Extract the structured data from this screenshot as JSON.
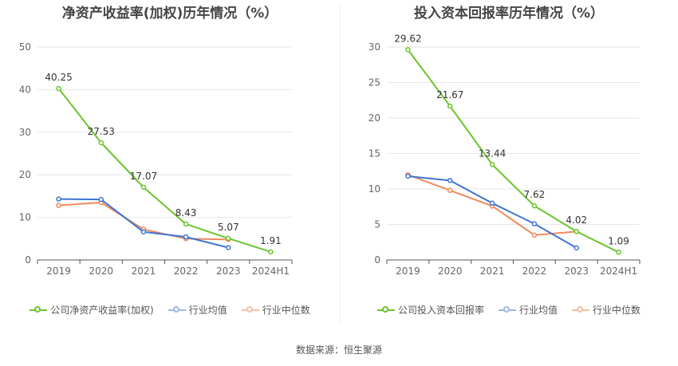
{
  "source_text": "数据来源：恒生聚源",
  "chart_data": [
    {
      "type": "line",
      "title": "净资产收益率(加权)历年情况（%）",
      "categories": [
        "2019",
        "2020",
        "2021",
        "2022",
        "2023",
        "2024H1"
      ],
      "ylim": [
        0,
        50
      ],
      "yticks": [
        0,
        10,
        20,
        30,
        40,
        50
      ],
      "grid": true,
      "legend_position": "bottom",
      "series": [
        {
          "name": "公司净资产收益率(加权)",
          "color": "#6ac52e",
          "values": [
            40.25,
            27.53,
            17.07,
            8.43,
            5.07,
            1.91
          ],
          "labels": [
            "40.25",
            "27.53",
            "17.07",
            "8.43",
            "5.07",
            "1.91"
          ]
        },
        {
          "name": "行业均值",
          "color": "#3f74d6",
          "values": [
            14.3,
            14.2,
            6.6,
            5.4,
            2.9,
            null
          ]
        },
        {
          "name": "行业中位数",
          "color": "#f0895a",
          "values": [
            12.8,
            13.5,
            7.2,
            5.0,
            4.8,
            null
          ]
        }
      ]
    },
    {
      "type": "line",
      "title": "投入资本回报率历年情况（%）",
      "categories": [
        "2019",
        "2020",
        "2021",
        "2022",
        "2023",
        "2024H1"
      ],
      "ylim": [
        0,
        30
      ],
      "yticks": [
        0,
        5,
        10,
        15,
        20,
        25,
        30
      ],
      "grid": true,
      "legend_position": "bottom",
      "series": [
        {
          "name": "公司投入资本回报率",
          "color": "#6ac52e",
          "values": [
            29.62,
            21.67,
            13.44,
            7.62,
            4.02,
            1.09
          ],
          "labels": [
            "29.62",
            "21.67",
            "13.44",
            "7.62",
            "4.02",
            "1.09"
          ]
        },
        {
          "name": "行业均值",
          "color": "#3f74d6",
          "values": [
            11.8,
            11.2,
            8.0,
            5.1,
            1.7,
            null
          ]
        },
        {
          "name": "行业中位数",
          "color": "#f0895a",
          "values": [
            12.0,
            9.8,
            7.6,
            3.5,
            4.0,
            null
          ]
        }
      ]
    }
  ]
}
